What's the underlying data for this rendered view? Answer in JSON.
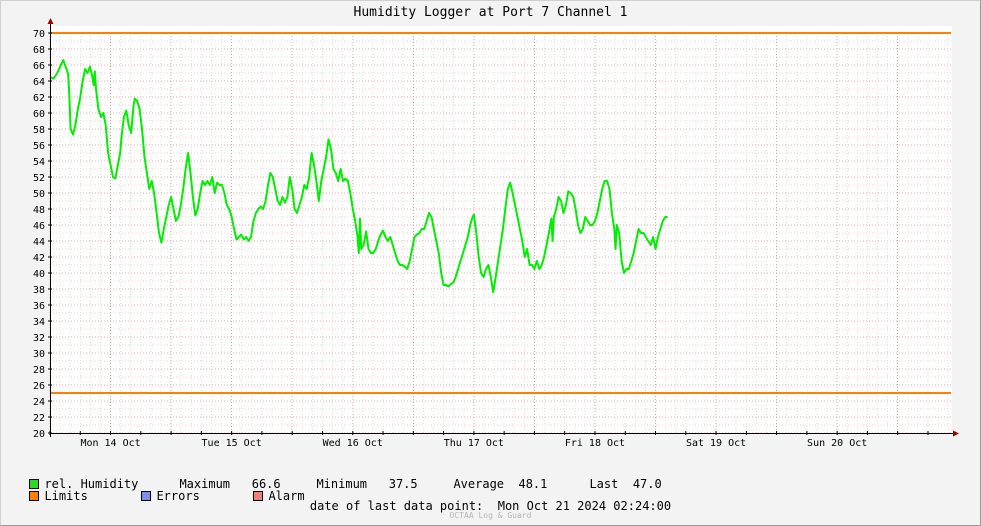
{
  "chart_data": {
    "type": "line",
    "title": "Humidity Logger at Port 7 Channel 1",
    "ylim": [
      20,
      70
    ],
    "yticks": [
      20,
      22,
      24,
      26,
      28,
      30,
      32,
      34,
      36,
      38,
      40,
      42,
      44,
      46,
      48,
      50,
      52,
      54,
      56,
      58,
      60,
      62,
      64,
      66,
      68,
      70
    ],
    "xlim": [
      0,
      7.44
    ],
    "xtick_labels": [
      {
        "x": 0.5,
        "label": "Mon 14 Oct"
      },
      {
        "x": 1.5,
        "label": "Tue 15 Oct"
      },
      {
        "x": 2.5,
        "label": "Wed 16 Oct"
      },
      {
        "x": 3.5,
        "label": "Thu 17 Oct"
      },
      {
        "x": 4.5,
        "label": "Fri 18 Oct"
      },
      {
        "x": 5.5,
        "label": "Sat 19 Oct"
      },
      {
        "x": 6.5,
        "label": "Sun 20 Oct"
      }
    ],
    "limits": {
      "upper": 70,
      "lower": 25,
      "color": "#ff7f00"
    },
    "grid": true,
    "series": [
      {
        "name": "rel. Humidity",
        "color": "#00ee00",
        "points": [
          [
            0.0,
            64.5
          ],
          [
            0.03,
            64.3
          ],
          [
            0.06,
            65.0
          ],
          [
            0.09,
            66.0
          ],
          [
            0.11,
            66.6
          ],
          [
            0.14,
            65.3
          ],
          [
            0.15,
            64.8
          ],
          [
            0.16,
            62.0
          ],
          [
            0.17,
            58.0
          ],
          [
            0.19,
            57.3
          ],
          [
            0.21,
            58.5
          ],
          [
            0.23,
            60.5
          ],
          [
            0.25,
            62.0
          ],
          [
            0.27,
            64.0
          ],
          [
            0.29,
            65.5
          ],
          [
            0.31,
            65.0
          ],
          [
            0.33,
            65.8
          ],
          [
            0.35,
            64.5
          ],
          [
            0.36,
            63.5
          ],
          [
            0.37,
            65.2
          ],
          [
            0.38,
            63.0
          ],
          [
            0.4,
            60.5
          ],
          [
            0.42,
            59.5
          ],
          [
            0.44,
            60.0
          ],
          [
            0.46,
            58.5
          ],
          [
            0.48,
            55.0
          ],
          [
            0.5,
            53.5
          ],
          [
            0.52,
            52.0
          ],
          [
            0.54,
            51.8
          ],
          [
            0.56,
            53.5
          ],
          [
            0.58,
            55.0
          ],
          [
            0.59,
            57.0
          ],
          [
            0.61,
            59.5
          ],
          [
            0.63,
            60.3
          ],
          [
            0.65,
            58.5
          ],
          [
            0.67,
            57.5
          ],
          [
            0.69,
            61.0
          ],
          [
            0.7,
            61.8
          ],
          [
            0.72,
            61.5
          ],
          [
            0.74,
            60.5
          ],
          [
            0.76,
            58.0
          ],
          [
            0.78,
            54.5
          ],
          [
            0.8,
            52.5
          ],
          [
            0.82,
            50.5
          ],
          [
            0.84,
            51.5
          ],
          [
            0.86,
            50.0
          ],
          [
            0.88,
            47.5
          ],
          [
            0.9,
            45.0
          ],
          [
            0.92,
            43.8
          ],
          [
            0.94,
            45.5
          ],
          [
            0.96,
            47.0
          ],
          [
            0.98,
            48.5
          ],
          [
            1.0,
            49.5
          ],
          [
            1.02,
            48.0
          ],
          [
            1.04,
            46.5
          ],
          [
            1.06,
            47.0
          ],
          [
            1.08,
            48.5
          ],
          [
            1.1,
            50.5
          ],
          [
            1.12,
            53.0
          ],
          [
            1.14,
            55.0
          ],
          [
            1.16,
            52.5
          ],
          [
            1.18,
            49.5
          ],
          [
            1.2,
            47.2
          ],
          [
            1.22,
            48.0
          ],
          [
            1.24,
            50.0
          ],
          [
            1.26,
            51.5
          ],
          [
            1.28,
            51.0
          ],
          [
            1.3,
            51.5
          ],
          [
            1.32,
            51.0
          ],
          [
            1.34,
            52.0
          ],
          [
            1.36,
            50.0
          ],
          [
            1.38,
            51.3
          ],
          [
            1.4,
            51.0
          ],
          [
            1.42,
            51.0
          ],
          [
            1.44,
            50.0
          ],
          [
            1.46,
            48.5
          ],
          [
            1.48,
            48.0
          ],
          [
            1.5,
            47.0
          ],
          [
            1.52,
            45.5
          ],
          [
            1.54,
            44.2
          ],
          [
            1.56,
            44.5
          ],
          [
            1.58,
            44.8
          ],
          [
            1.6,
            44.2
          ],
          [
            1.62,
            44.5
          ],
          [
            1.64,
            44.0
          ],
          [
            1.66,
            44.5
          ],
          [
            1.68,
            46.5
          ],
          [
            1.7,
            47.5
          ],
          [
            1.72,
            48.0
          ],
          [
            1.74,
            48.3
          ],
          [
            1.76,
            48.0
          ],
          [
            1.78,
            49.0
          ],
          [
            1.8,
            51.0
          ],
          [
            1.82,
            52.5
          ],
          [
            1.84,
            52.0
          ],
          [
            1.86,
            50.5
          ],
          [
            1.88,
            49.0
          ],
          [
            1.9,
            48.5
          ],
          [
            1.92,
            49.5
          ],
          [
            1.94,
            48.8
          ],
          [
            1.96,
            49.5
          ],
          [
            1.98,
            52.0
          ],
          [
            2.0,
            50.5
          ],
          [
            2.02,
            48.0
          ],
          [
            2.04,
            47.5
          ],
          [
            2.06,
            48.5
          ],
          [
            2.08,
            49.5
          ],
          [
            2.1,
            51.0
          ],
          [
            2.12,
            50.5
          ],
          [
            2.14,
            52.0
          ],
          [
            2.16,
            55.0
          ],
          [
            2.18,
            53.5
          ],
          [
            2.2,
            51.5
          ],
          [
            2.22,
            49.0
          ],
          [
            2.24,
            51.5
          ],
          [
            2.26,
            53.0
          ],
          [
            2.28,
            54.5
          ],
          [
            2.3,
            56.7
          ],
          [
            2.32,
            55.5
          ],
          [
            2.34,
            53.0
          ],
          [
            2.36,
            52.5
          ],
          [
            2.38,
            51.5
          ],
          [
            2.4,
            53.0
          ],
          [
            2.42,
            51.5
          ],
          [
            2.44,
            51.8
          ],
          [
            2.46,
            51.5
          ],
          [
            2.48,
            50.0
          ],
          [
            2.5,
            48.0
          ],
          [
            2.52,
            46.5
          ],
          [
            2.54,
            44.5
          ],
          [
            2.55,
            42.5
          ],
          [
            2.56,
            46.8
          ],
          [
            2.57,
            43.0
          ],
          [
            2.59,
            43.5
          ],
          [
            2.61,
            45.2
          ],
          [
            2.63,
            43.0
          ],
          [
            2.65,
            42.5
          ],
          [
            2.67,
            42.5
          ],
          [
            2.69,
            43.0
          ],
          [
            2.71,
            44.0
          ],
          [
            2.73,
            44.8
          ],
          [
            2.75,
            45.3
          ],
          [
            2.77,
            44.5
          ],
          [
            2.79,
            44.0
          ],
          [
            2.81,
            44.5
          ],
          [
            2.83,
            43.5
          ],
          [
            2.85,
            42.5
          ],
          [
            2.87,
            41.5
          ],
          [
            2.89,
            41.0
          ],
          [
            2.91,
            41.0
          ],
          [
            2.93,
            40.8
          ],
          [
            2.95,
            40.5
          ],
          [
            2.97,
            41.5
          ],
          [
            2.99,
            43.0
          ],
          [
            3.01,
            44.5
          ],
          [
            3.03,
            44.8
          ],
          [
            3.05,
            45.0
          ],
          [
            3.07,
            45.5
          ],
          [
            3.09,
            45.5
          ],
          [
            3.11,
            46.5
          ],
          [
            3.13,
            47.5
          ],
          [
            3.15,
            47.0
          ],
          [
            3.17,
            45.5
          ],
          [
            3.19,
            44.0
          ],
          [
            3.21,
            42.5
          ],
          [
            3.23,
            40.0
          ],
          [
            3.25,
            38.5
          ],
          [
            3.27,
            38.5
          ],
          [
            3.29,
            38.3
          ],
          [
            3.31,
            38.6
          ],
          [
            3.33,
            38.8
          ],
          [
            3.35,
            39.5
          ],
          [
            3.37,
            40.5
          ],
          [
            3.39,
            41.5
          ],
          [
            3.41,
            42.5
          ],
          [
            3.43,
            43.5
          ],
          [
            3.45,
            44.5
          ],
          [
            3.47,
            46.0
          ],
          [
            3.49,
            47.0
          ],
          [
            3.5,
            47.3
          ],
          [
            3.52,
            45.0
          ],
          [
            3.54,
            42.0
          ],
          [
            3.56,
            40.0
          ],
          [
            3.58,
            39.5
          ],
          [
            3.6,
            40.5
          ],
          [
            3.62,
            41.0
          ],
          [
            3.64,
            39.5
          ],
          [
            3.66,
            37.6
          ],
          [
            3.68,
            39.5
          ],
          [
            3.7,
            41.5
          ],
          [
            3.72,
            43.5
          ],
          [
            3.74,
            45.5
          ],
          [
            3.76,
            48.0
          ],
          [
            3.78,
            50.5
          ],
          [
            3.8,
            51.3
          ],
          [
            3.82,
            50.0
          ],
          [
            3.84,
            48.5
          ],
          [
            3.86,
            47.0
          ],
          [
            3.88,
            45.5
          ],
          [
            3.9,
            44.0
          ],
          [
            3.92,
            42.0
          ],
          [
            3.94,
            43.0
          ],
          [
            3.96,
            41.0
          ],
          [
            3.98,
            41.0
          ],
          [
            4.0,
            40.5
          ],
          [
            4.02,
            41.5
          ],
          [
            4.04,
            40.5
          ],
          [
            4.06,
            41.0
          ],
          [
            4.08,
            42.0
          ],
          [
            4.1,
            43.5
          ],
          [
            4.12,
            45.0
          ],
          [
            4.14,
            46.8
          ],
          [
            4.15,
            44.0
          ],
          [
            4.16,
            47.0
          ],
          [
            4.18,
            48.0
          ],
          [
            4.2,
            49.5
          ],
          [
            4.22,
            49.0
          ],
          [
            4.24,
            47.5
          ],
          [
            4.26,
            48.5
          ],
          [
            4.28,
            50.2
          ],
          [
            4.3,
            50.0
          ],
          [
            4.32,
            49.5
          ],
          [
            4.34,
            48.0
          ],
          [
            4.36,
            46.0
          ],
          [
            4.38,
            45.0
          ],
          [
            4.4,
            45.5
          ],
          [
            4.42,
            47.0
          ],
          [
            4.44,
            46.5
          ],
          [
            4.46,
            46.0
          ],
          [
            4.48,
            46.0
          ],
          [
            4.5,
            46.5
          ],
          [
            4.52,
            47.5
          ],
          [
            4.54,
            49.0
          ],
          [
            4.56,
            50.5
          ],
          [
            4.58,
            51.5
          ],
          [
            4.6,
            51.5
          ],
          [
            4.62,
            50.5
          ],
          [
            4.64,
            47.5
          ],
          [
            4.66,
            45.5
          ],
          [
            4.67,
            43.0
          ],
          [
            4.68,
            46.0
          ],
          [
            4.7,
            45.0
          ],
          [
            4.72,
            41.5
          ],
          [
            4.74,
            40.0
          ],
          [
            4.76,
            40.5
          ],
          [
            4.78,
            40.5
          ],
          [
            4.8,
            41.5
          ],
          [
            4.82,
            42.5
          ],
          [
            4.84,
            44.0
          ],
          [
            4.86,
            45.5
          ],
          [
            4.88,
            45.0
          ],
          [
            4.9,
            45.0
          ],
          [
            4.92,
            44.5
          ],
          [
            4.94,
            44.0
          ],
          [
            4.96,
            43.5
          ],
          [
            4.98,
            44.5
          ],
          [
            5.0,
            43.0
          ],
          [
            5.02,
            44.5
          ],
          [
            5.04,
            45.5
          ],
          [
            5.06,
            46.5
          ],
          [
            5.08,
            47.0
          ],
          [
            5.1,
            47.0
          ]
        ]
      }
    ],
    "stats": {
      "maximum_label": "Maximum",
      "maximum": "66.6",
      "minimum_label": "Minimum",
      "minimum": "37.5",
      "average_label": "Average",
      "average": "48.1",
      "last_label": "Last",
      "last": "47.0"
    },
    "legend": {
      "humidity": {
        "label": "rel. Humidity",
        "color": "#22dd22"
      },
      "limits": {
        "label": "Limits",
        "color": "#ff7f00"
      },
      "errors": {
        "label": "Errors",
        "color": "#7d8ef0"
      },
      "alarm": {
        "label": "Alarm",
        "color": "#f08080"
      }
    },
    "last_data_point": "date of last data point:  Mon Oct 21 2024 02:24:00",
    "watermark": "OCTAA Log & Guard"
  }
}
